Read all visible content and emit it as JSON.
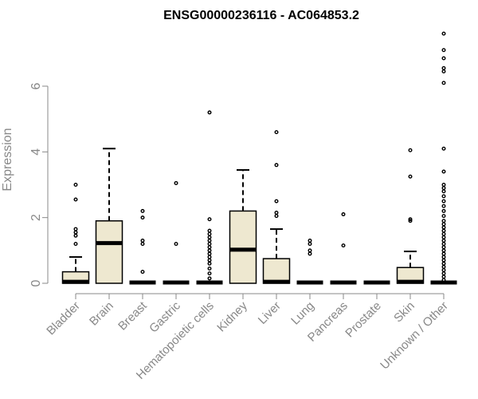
{
  "chart_data": {
    "type": "box",
    "title": "ENSG00000236116 - AC064853.2",
    "ylabel": "Expression",
    "xlabel": "",
    "ylim": [
      0,
      7.9
    ],
    "yticks": [
      0,
      2,
      4,
      6
    ],
    "grid": false,
    "colors": {
      "box_fill": "#EEE8D0",
      "stroke": "#000000",
      "axis": "#888888"
    },
    "categories": [
      "Bladder",
      "Brain",
      "Breast",
      "Gastric",
      "Hematopoietic cells",
      "Kidney",
      "Liver",
      "Lung",
      "Pancreas",
      "Prostate",
      "Skin",
      "Unknown / Other"
    ],
    "boxes": [
      {
        "name": "Bladder",
        "q1": 0,
        "median": 0.02,
        "q3": 0.35,
        "whisker_low": 0,
        "whisker_high": 0.8,
        "outliers": [
          3.0,
          2.55,
          1.65,
          1.55,
          1.45,
          1.2
        ]
      },
      {
        "name": "Brain",
        "q1": 0,
        "median": 1.2,
        "q3": 1.9,
        "whisker_low": 0,
        "whisker_high": 4.1,
        "outliers": []
      },
      {
        "name": "Breast",
        "q1": 0,
        "median": 0,
        "q3": 0,
        "whisker_low": 0,
        "whisker_high": 0,
        "outliers": [
          2.2,
          2.0,
          1.3,
          1.2,
          0.35
        ]
      },
      {
        "name": "Gastric",
        "q1": 0,
        "median": 0,
        "q3": 0,
        "whisker_low": 0,
        "whisker_high": 0,
        "outliers": [
          3.05,
          1.2
        ]
      },
      {
        "name": "Hematopoietic cells",
        "q1": 0,
        "median": 0,
        "q3": 0,
        "whisker_low": 0,
        "whisker_high": 0,
        "outliers": [
          5.2,
          1.95,
          1.6,
          1.5,
          1.4,
          1.3,
          1.2,
          1.1,
          1.0,
          0.9,
          0.8,
          0.7,
          0.6,
          0.45,
          0.3,
          0.15
        ]
      },
      {
        "name": "Kidney",
        "q1": 0,
        "median": 1.0,
        "q3": 2.2,
        "whisker_low": 0,
        "whisker_high": 3.45,
        "outliers": []
      },
      {
        "name": "Liver",
        "q1": 0,
        "median": 0.02,
        "q3": 0.75,
        "whisker_low": 0,
        "whisker_high": 1.65,
        "outliers": [
          4.6,
          3.6,
          2.5,
          2.15,
          2.05
        ]
      },
      {
        "name": "Lung",
        "q1": 0,
        "median": 0,
        "q3": 0,
        "whisker_low": 0,
        "whisker_high": 0,
        "outliers": [
          1.3,
          1.2,
          1.0,
          0.9
        ]
      },
      {
        "name": "Pancreas",
        "q1": 0,
        "median": 0,
        "q3": 0,
        "whisker_low": 0,
        "whisker_high": 0,
        "outliers": [
          2.1,
          1.15
        ]
      },
      {
        "name": "Prostate",
        "q1": 0,
        "median": 0,
        "q3": 0,
        "whisker_low": 0,
        "whisker_high": 0,
        "outliers": []
      },
      {
        "name": "Skin",
        "q1": 0,
        "median": 0.02,
        "q3": 0.48,
        "whisker_low": 0,
        "whisker_high": 0.97,
        "outliers": [
          4.05,
          3.25,
          1.95,
          1.9
        ]
      },
      {
        "name": "Unknown / Other",
        "q1": 0,
        "median": 0,
        "q3": 0,
        "whisker_low": 0,
        "whisker_high": 0,
        "outliers": [
          7.6,
          7.1,
          6.85,
          6.55,
          6.45,
          6.1,
          4.1,
          3.4,
          3.0,
          2.9,
          2.8,
          2.65,
          2.5,
          2.35,
          2.2,
          2.05,
          1.9,
          1.8,
          1.7,
          1.6,
          1.5,
          1.4,
          1.3,
          1.2,
          1.1,
          1.0,
          0.9,
          0.8,
          0.7,
          0.6,
          0.5,
          0.4,
          0.3,
          0.2,
          0.1
        ]
      }
    ]
  }
}
